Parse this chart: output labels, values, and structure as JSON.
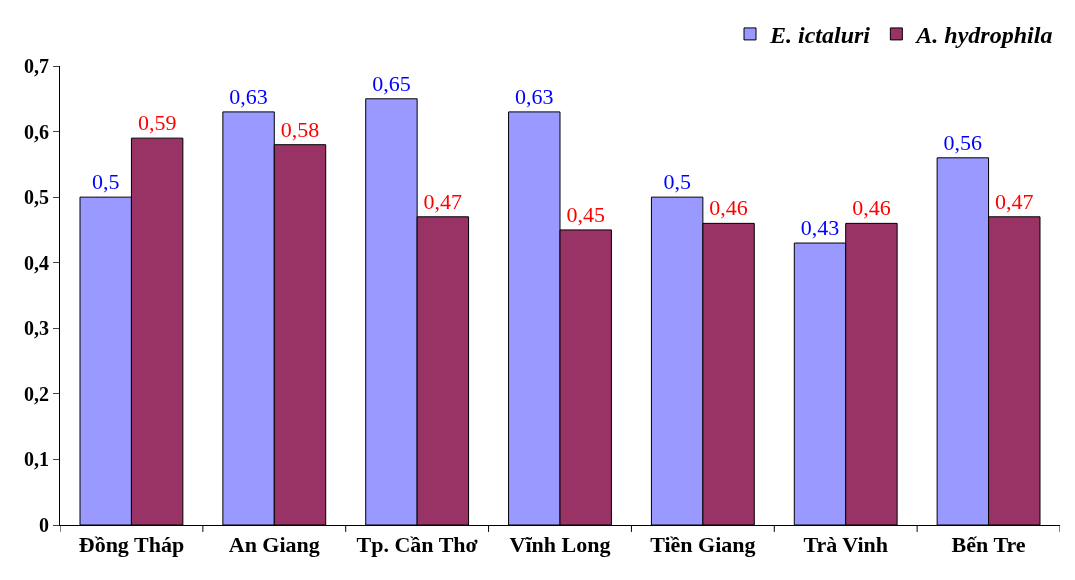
{
  "chart_data": {
    "type": "bar",
    "categories": [
      "Đồng Tháp",
      "An Giang",
      "Tp. Cần Thơ",
      "Vĩnh Long",
      "Tiền Giang",
      "Trà Vinh",
      "Bến Tre"
    ],
    "series": [
      {
        "name": "E. ictaluri",
        "color": "#9999ff",
        "values": [
          0.5,
          0.63,
          0.65,
          0.63,
          0.5,
          0.43,
          0.56
        ],
        "value_labels": [
          "0,5",
          "0,63",
          "0,65",
          "0,63",
          "0,5",
          "0,43",
          "0,56"
        ]
      },
      {
        "name": "A. hydrophila",
        "color": "#993366",
        "values": [
          0.59,
          0.58,
          0.47,
          0.45,
          0.46,
          0.46,
          0.47
        ],
        "value_labels": [
          "0,59",
          "0,58",
          "0,47",
          "0,45",
          "0,46",
          "0,46",
          "0,47"
        ]
      }
    ],
    "ylim": [
      0,
      0.7
    ],
    "yticks": [
      {
        "value": 0,
        "label": "0"
      },
      {
        "value": 0.1,
        "label": "0,1"
      },
      {
        "value": 0.2,
        "label": "0,2"
      },
      {
        "value": 0.3,
        "label": "0,3"
      },
      {
        "value": 0.4,
        "label": "0,4"
      },
      {
        "value": 0.5,
        "label": "0,5"
      },
      {
        "value": 0.6,
        "label": "0,6"
      },
      {
        "value": 0.7,
        "label": "0,7"
      }
    ],
    "grid": false,
    "legend": "top right"
  }
}
